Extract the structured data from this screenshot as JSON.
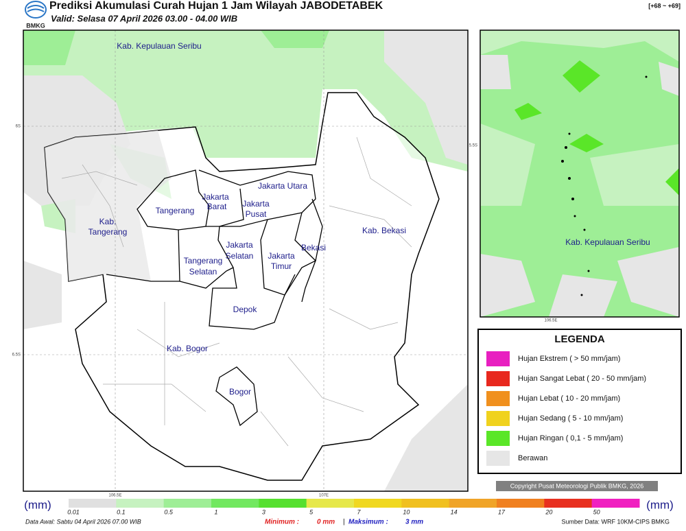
{
  "header": {
    "logo_text": "BMKG",
    "title": "Prediksi Akumulasi Curah Hujan 1 Jam Wilayah JABODETABEK",
    "valid": "Valid: Selasa 07 April 2026 03.00 - 04.00 WIB",
    "range": "[+68 ~ +69]"
  },
  "map": {
    "labels": [
      "Kab. Kepulauan Seribu",
      "Jakarta Utara",
      "Jakarta",
      "Barat",
      "Jakarta",
      "Pusat",
      "Tangerang",
      "Kab.",
      "Tangerang",
      "Kab. Bekasi",
      "Jakarta",
      "Selatan",
      "Bekasi",
      "Jakarta",
      "Timur",
      "Tangerang",
      "Selatan",
      "Depok",
      "Kab. Bogor",
      "Bogor"
    ],
    "grid_labels": [
      "6S",
      "6.5S",
      "106.5E",
      "107E"
    ]
  },
  "inset": {
    "labels": [
      "Kab. Kepulauan Seribu"
    ],
    "grid_labels": [
      "5.5S",
      "106.5E"
    ]
  },
  "legend": {
    "title": "LEGENDA",
    "items": [
      {
        "name": "Hujan Ekstrem ( > 50 mm/jam)",
        "color": "#e81fc0"
      },
      {
        "name": "Hujan Sangat Lebat ( 20 - 50 mm/jam)",
        "color": "#e8281e"
      },
      {
        "name": "Hujan Lebat ( 10 - 20 mm/jam)",
        "color": "#f0901e"
      },
      {
        "name": "Hujan Sedang ( 5 - 10 mm/jam)",
        "color": "#f0d21e"
      },
      {
        "name": "Hujan Ringan ( 0,1 - 5 mm/jam)",
        "color": "#5ae628"
      },
      {
        "name": "Berawan",
        "color": "#e6e6e6"
      }
    ]
  },
  "copyright": "Copyright Pusat Meteorologi Publik BMKG, 2026",
  "colorbar": {
    "unit_left": "(mm)",
    "unit_right": "(mm)",
    "ticks": [
      "0.01",
      "0.1",
      "0.5",
      "1",
      "3",
      "5",
      "7",
      "10",
      "14",
      "17",
      "20",
      "50"
    ],
    "colors": [
      "#e0e0e0",
      "#c6f2c0",
      "#9eee96",
      "#72e860",
      "#56e030",
      "#e6e84a",
      "#f0d820",
      "#f0c020",
      "#f0a428",
      "#f08020",
      "#e83020",
      "#f020c0"
    ]
  },
  "footer": {
    "data_awal": "Data Awal: Sabtu 04 April 2026 07.00 WIB",
    "min_label": "Minimum :",
    "min_value": "0 mm",
    "separator": "|",
    "max_label": "Maksimum :",
    "max_value": "3 mm",
    "source": "Sumber Data: WRF 10KM-CIPS BMKG"
  }
}
